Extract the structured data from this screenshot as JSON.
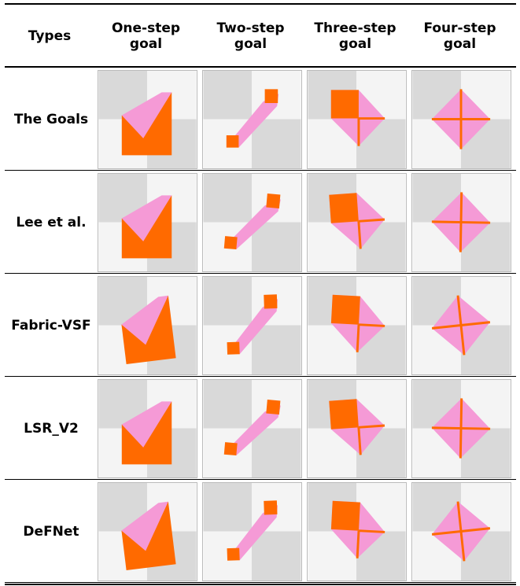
{
  "table": {
    "header": [
      "Types",
      "One-step goal",
      "Two-step goal",
      "Three-step goal",
      "Four-step goal"
    ],
    "rows": [
      "The Goals",
      "Lee et al.",
      "Fabric-VSF",
      "LSR_V2",
      "DeFNet"
    ]
  }
}
